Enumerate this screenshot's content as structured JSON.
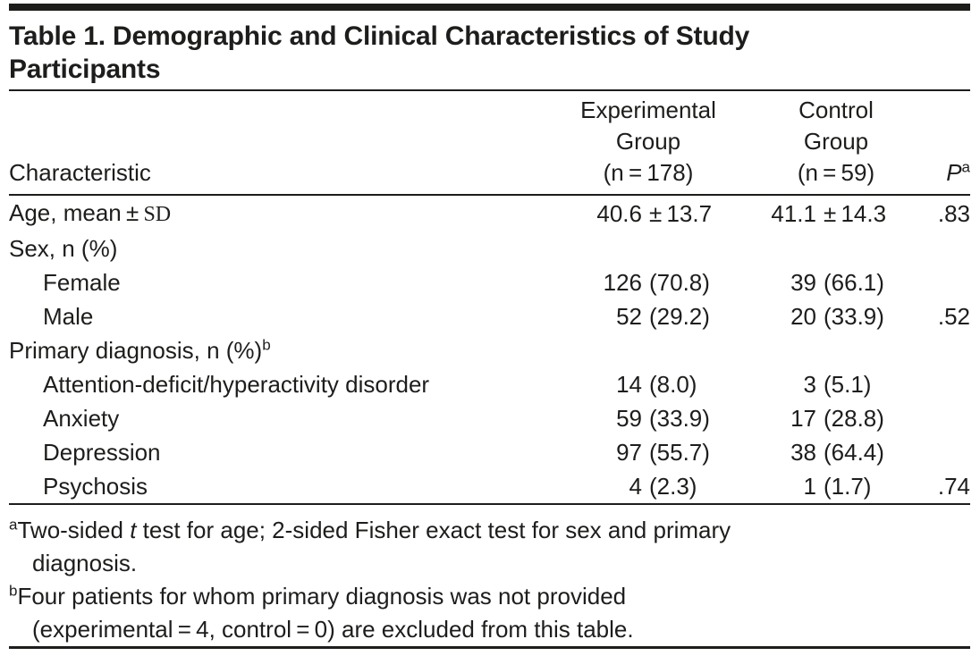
{
  "colors": {
    "text": "#1d1d1b",
    "rule": "#1d1d1b",
    "background": "#ffffff"
  },
  "title": {
    "line1": "Table 1. Demographic and Clinical Characteristics of Study",
    "line2": "Participants"
  },
  "header": {
    "characteristic": "Characteristic",
    "experimental_group": {
      "line1": "Experimental",
      "line2": "Group",
      "line3": "(n = 178)"
    },
    "control_group": {
      "line1": "Control",
      "line2": "Group",
      "line3": "(n = 59)"
    },
    "p_value": {
      "label": "P",
      "superscript": "a"
    }
  },
  "rows": [
    {
      "label": "Age, mean ± ",
      "label_serif": "SD",
      "exp_n": "40.6",
      "exp_pct": "± 13.7",
      "ctl_n": "41.1",
      "ctl_pct": "± 14.3",
      "p": ".83"
    },
    {
      "label": "Sex, n (%)"
    },
    {
      "label": "Female",
      "exp_n": "126",
      "exp_pct": "(70.8)",
      "ctl_n": "39",
      "ctl_pct": "(66.1)"
    },
    {
      "label": "Male",
      "exp_n": "52",
      "exp_pct": "(29.2)",
      "ctl_n": "20",
      "ctl_pct": "(33.9)",
      "p": ".52"
    },
    {
      "label": "Primary diagnosis, n (%)",
      "label_superscript": "b"
    },
    {
      "label": "Attention-deficit/hyperactivity disorder",
      "exp_n": "14",
      "exp_pct": "(8.0)",
      "ctl_n": "3",
      "ctl_pct": "(5.1)"
    },
    {
      "label": "Anxiety",
      "exp_n": "59",
      "exp_pct": "(33.9)",
      "ctl_n": "17",
      "ctl_pct": "(28.8)"
    },
    {
      "label": "Depression",
      "exp_n": "97",
      "exp_pct": "(55.7)",
      "ctl_n": "38",
      "ctl_pct": "(64.4)"
    },
    {
      "label": "Psychosis",
      "exp_n": "4",
      "exp_pct": "(2.3)",
      "ctl_n": "1",
      "ctl_pct": "(1.7)",
      "p": ".74"
    }
  ],
  "footnotes": [
    {
      "marker": "a",
      "line1_before_italic": "Two-sided ",
      "line1_italic": "t",
      "line1_after_italic": " test for age; 2-sided Fisher exact test for sex and primary",
      "line2": "diagnosis."
    },
    {
      "marker": "b",
      "line1": "Four patients for whom primary diagnosis was not provided",
      "line2": "(experimental = 4, control = 0) are excluded from this table."
    }
  ]
}
